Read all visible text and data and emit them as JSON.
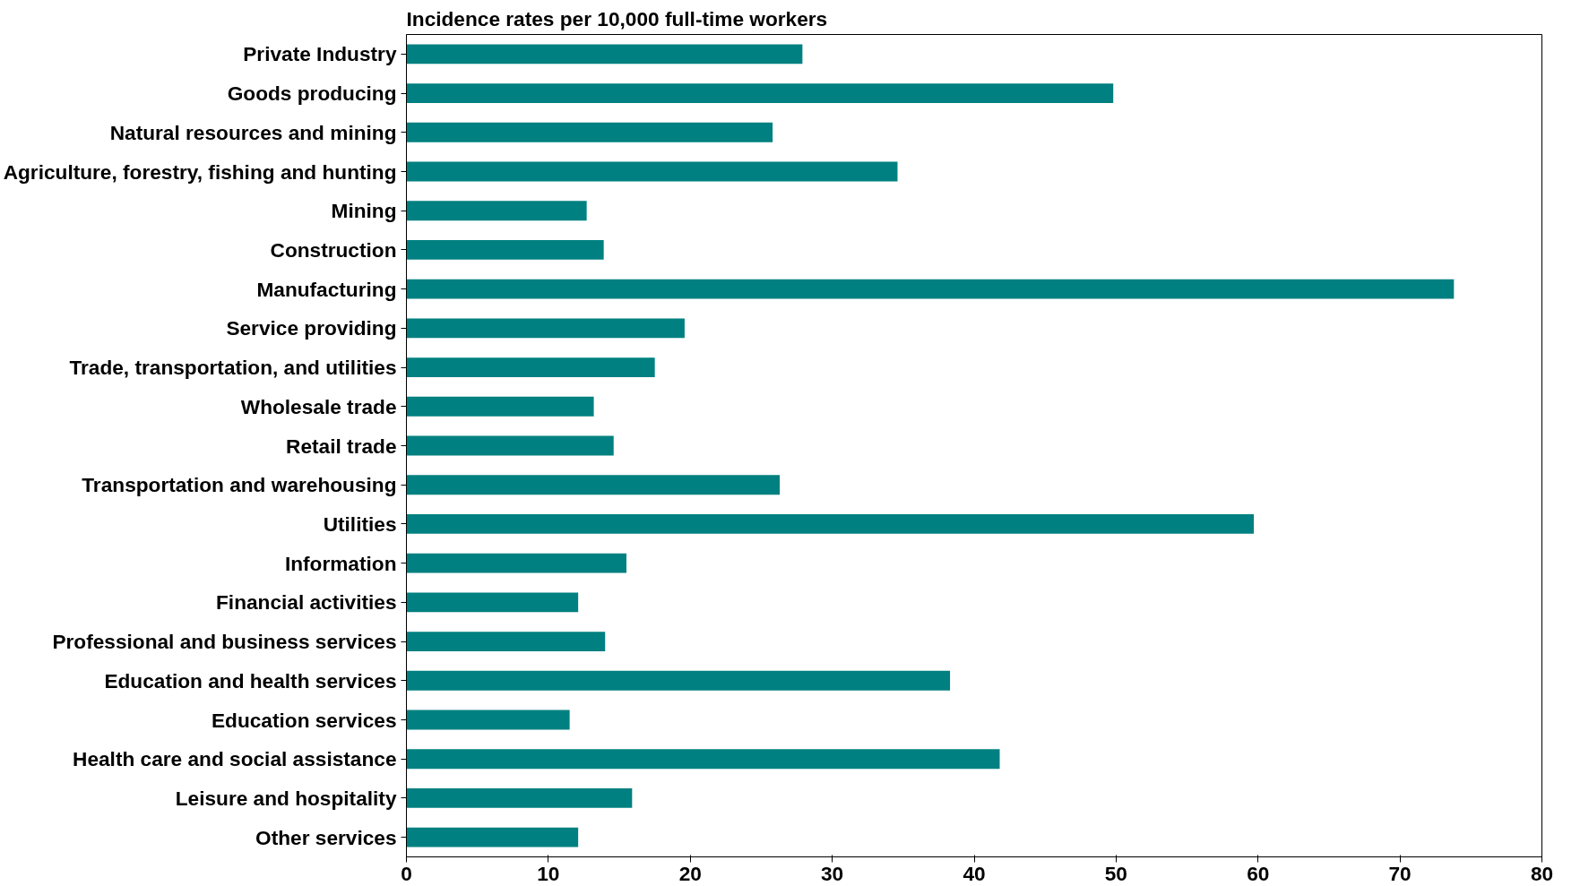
{
  "chart_data": {
    "type": "bar",
    "orientation": "horizontal",
    "title": "Incidence rates per 10,000 full-time workers",
    "categories": [
      "Private Industry",
      "Goods producing",
      "Natural resources and mining",
      "Agriculture, forestry, fishing and hunting",
      "Mining",
      "Construction",
      "Manufacturing",
      "Service providing",
      "Trade, transportation, and utilities",
      "Wholesale trade",
      "Retail trade",
      "Transportation and warehousing",
      "Utilities",
      "Information",
      "Financial activities",
      "Professional and business services",
      "Education and health services",
      "Education services",
      "Health care and social assistance",
      "Leisure and hospitality",
      "Other services"
    ],
    "values": [
      27.9,
      49.8,
      25.8,
      34.6,
      12.7,
      13.9,
      73.8,
      19.6,
      17.5,
      13.2,
      14.6,
      26.3,
      59.7,
      15.5,
      12.1,
      14.0,
      38.3,
      11.5,
      41.8,
      15.9,
      12.1
    ],
    "color": "#008080",
    "xlim": [
      0,
      80
    ],
    "xticks": [
      0,
      10,
      20,
      30,
      40,
      50,
      60,
      70,
      80
    ],
    "grid": false
  }
}
